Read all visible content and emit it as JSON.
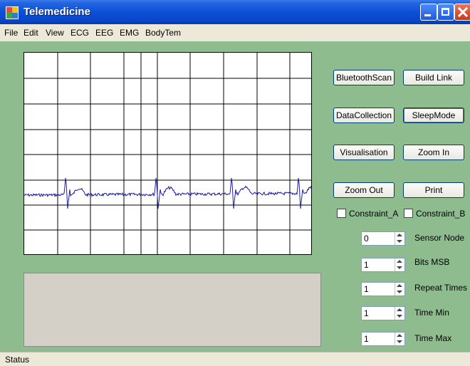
{
  "window": {
    "title": "Telemedicine"
  },
  "menu": [
    "File",
    "Edit",
    "View",
    "ECG",
    "EEG",
    "EMG",
    "BodyTem"
  ],
  "buttons": {
    "bluetooth_scan": "BluetoothScan",
    "build_link": "Build Link",
    "data_collection": "DataCollection",
    "sleep_mode": "SleepMode",
    "visualisation": "Visualisation",
    "zoom_in": "Zoom In",
    "zoom_out": "Zoom Out",
    "print": "Print"
  },
  "checkboxes": {
    "constraint_a": "Constraint_A",
    "constraint_b": "Constraint_B"
  },
  "params": [
    {
      "label": "Sensor Node",
      "value": "0"
    },
    {
      "label": "Bits MSB",
      "value": "1"
    },
    {
      "label": "Repeat Times",
      "value": "1"
    },
    {
      "label": "Time Min",
      "value": "1"
    },
    {
      "label": "Time Max",
      "value": "1"
    }
  ],
  "status": "Status",
  "colors": {
    "background": "#8fbc8f",
    "trace": "#1a1aa0",
    "titlebar": "#0c4fd8"
  }
}
